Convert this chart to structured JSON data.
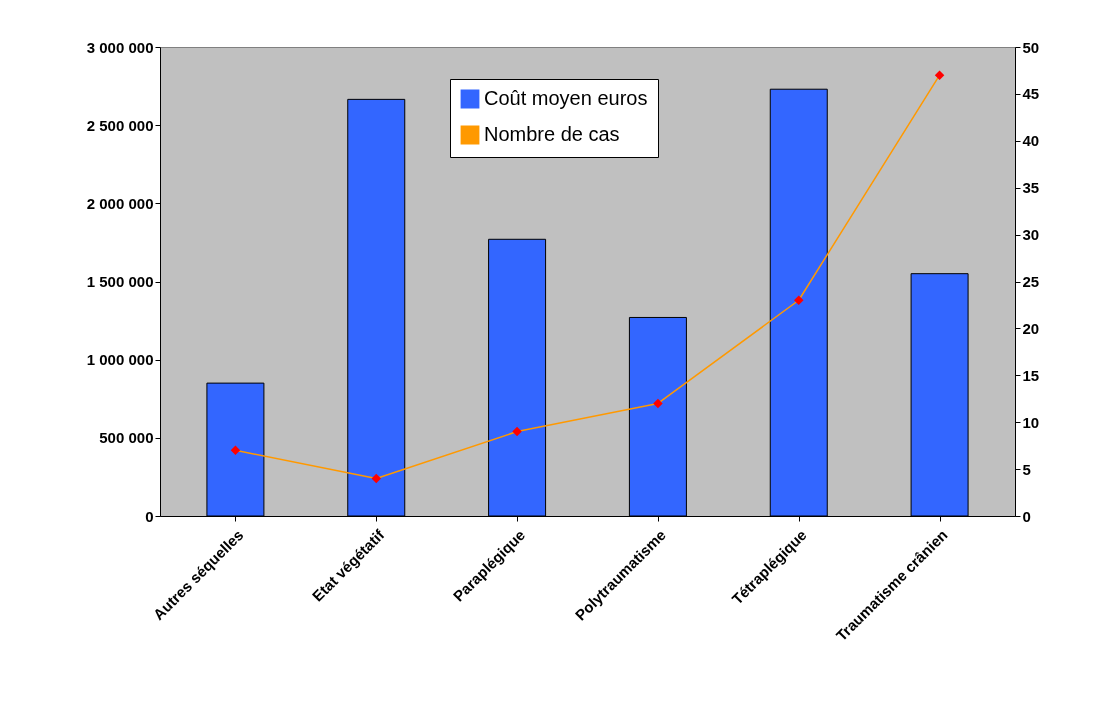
{
  "chart_data": {
    "type": "bar",
    "categories": [
      "Autres séquelles",
      "Etat végétatif",
      "Paraplégique",
      "Polytraumatisme",
      "Tétraplégique",
      "Traumatisme crânien"
    ],
    "series": [
      {
        "name": "Coût moyen euros",
        "color": "#3366ff",
        "values": [
          850000,
          2665000,
          1770000,
          1270000,
          2730000,
          1550000
        ]
      },
      {
        "name": "Nombre de cas",
        "type": "line",
        "axis": "y2",
        "color": "#ff9900",
        "colors": [
          "#ff0000",
          "#ff0000",
          "#ff0000",
          "#ff0000",
          "#ff0000",
          "#ff0000"
        ],
        "values": [
          7,
          4,
          9,
          12,
          23,
          47
        ]
      }
    ],
    "ylim": [
      0,
      3000000
    ],
    "yticks": [
      {
        "value": 0,
        "label": "0"
      },
      {
        "value": 500000,
        "label": "500 000"
      },
      {
        "value": 1000000,
        "label": "1 000 000"
      },
      {
        "value": 1500000,
        "label": "1 500 000"
      },
      {
        "value": 2000000,
        "label": "2 000 000"
      },
      {
        "value": 2500000,
        "label": "2 500 000"
      },
      {
        "value": 3000000,
        "label": "3 000 000"
      }
    ],
    "y2lim": [
      0,
      50
    ],
    "y2ticks": [
      0,
      5,
      10,
      15,
      20,
      25,
      30,
      35,
      40,
      45,
      50
    ],
    "marker": "diamond",
    "line_style": "solid",
    "grid": false,
    "legend": "top"
  }
}
